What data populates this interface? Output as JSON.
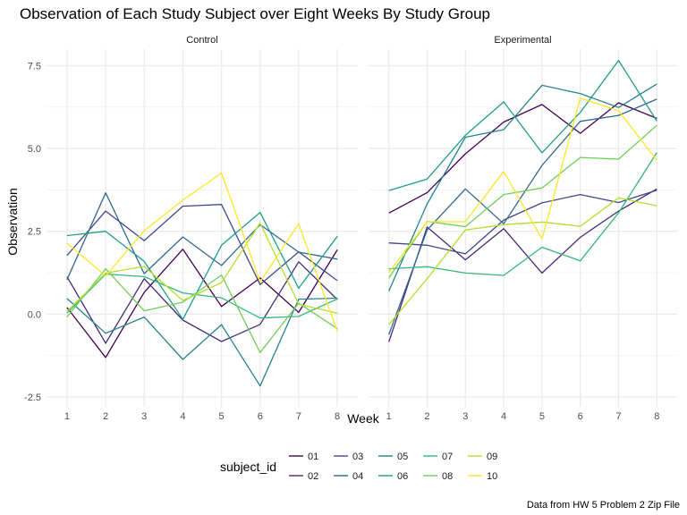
{
  "chart_data": {
    "type": "line",
    "title": "Observation of Each Study Subject over Eight Weeks By Study Group",
    "xlabel": "Week",
    "ylabel": "Observation",
    "caption": "Data from HW 5 Problem 2 Zip File",
    "x": [
      1,
      2,
      3,
      4,
      5,
      6,
      7,
      8
    ],
    "x_ticks": [
      "1",
      "2",
      "3",
      "4",
      "5",
      "6",
      "7",
      "8"
    ],
    "ylim": [
      -2.8,
      8.0
    ],
    "y_ticks": [
      -2.5,
      0.0,
      2.5,
      5.0,
      7.5
    ],
    "y_tick_labels": [
      "-2.5",
      "0.0",
      "2.5",
      "5.0",
      "7.5"
    ],
    "grid": true,
    "legend": {
      "title": "subject_id",
      "placement": "bottom",
      "entries": [
        "01",
        "02",
        "03",
        "04",
        "05",
        "06",
        "07",
        "08",
        "09",
        "10"
      ]
    },
    "colors": {
      "01": "#440154",
      "02": "#482878",
      "03": "#3e4989",
      "04": "#31688e",
      "05": "#26828e",
      "06": "#1f9e89",
      "07": "#35b779",
      "08": "#6ece58",
      "09": "#b5de2b",
      "10": "#fde725"
    },
    "facets": [
      {
        "label": "Control",
        "series": [
          {
            "name": "01",
            "values": [
              0.2,
              -1.31,
              0.66,
              1.96,
              0.23,
              1.09,
              0.05,
              1.94
            ]
          },
          {
            "name": "02",
            "values": [
              1.13,
              -0.88,
              1.07,
              -0.18,
              -0.83,
              -0.31,
              1.58,
              0.44
            ]
          },
          {
            "name": "03",
            "values": [
              1.77,
              3.11,
              2.22,
              3.26,
              3.31,
              0.89,
              1.88,
              1.01
            ]
          },
          {
            "name": "04",
            "values": [
              1.04,
              3.66,
              1.22,
              2.33,
              1.47,
              2.7,
              1.87,
              1.66
            ]
          },
          {
            "name": "05",
            "values": [
              0.47,
              -0.58,
              -0.09,
              -1.37,
              -0.32,
              -2.17,
              0.45,
              0.48
            ]
          },
          {
            "name": "06",
            "values": [
              2.37,
              2.5,
              1.59,
              -0.16,
              2.08,
              3.07,
              0.78,
              2.35
            ]
          },
          {
            "name": "07",
            "values": [
              0.03,
              1.21,
              1.13,
              0.64,
              0.49,
              -0.12,
              -0.07,
              0.46
            ]
          },
          {
            "name": "08",
            "values": [
              -0.09,
              1.37,
              0.1,
              0.36,
              1.18,
              -1.16,
              0.33,
              -0.44
            ]
          },
          {
            "name": "09",
            "values": [
              0.08,
              1.24,
              1.44,
              0.41,
              0.95,
              2.75,
              0.3,
              0.03
            ]
          },
          {
            "name": "10",
            "values": [
              2.14,
              1.15,
              2.52,
              3.44,
              4.26,
              0.97,
              2.73,
              -0.53
            ]
          }
        ]
      },
      {
        "label": "Experimental",
        "series": [
          {
            "name": "01",
            "values": [
              3.05,
              3.67,
              4.84,
              5.8,
              6.33,
              5.46,
              6.38,
              5.91
            ]
          },
          {
            "name": "02",
            "values": [
              -0.84,
              2.63,
              1.64,
              2.58,
              1.24,
              2.32,
              3.11,
              3.78
            ]
          },
          {
            "name": "03",
            "values": [
              2.15,
              2.08,
              1.82,
              2.84,
              3.36,
              3.61,
              3.37,
              3.74
            ]
          },
          {
            "name": "04",
            "values": [
              -0.62,
              2.54,
              3.78,
              2.73,
              4.49,
              5.82,
              6.0,
              6.49
            ]
          },
          {
            "name": "05",
            "values": [
              0.7,
              3.33,
              5.34,
              5.57,
              6.91,
              6.66,
              6.24,
              6.95
            ]
          },
          {
            "name": "06",
            "values": [
              3.73,
              4.08,
              5.4,
              6.41,
              4.87,
              6.09,
              7.66,
              5.83
            ]
          },
          {
            "name": "07",
            "values": [
              1.37,
              1.43,
              1.24,
              1.17,
              2.02,
              1.61,
              3.06,
              4.88
            ]
          },
          {
            "name": "08",
            "values": [
              1.09,
              2.8,
              2.64,
              3.61,
              3.81,
              4.73,
              4.68,
              5.7
            ]
          },
          {
            "name": "09",
            "values": [
              -0.32,
              1.07,
              2.54,
              2.7,
              2.78,
              2.65,
              3.51,
              3.27
            ]
          },
          {
            "name": "10",
            "values": [
              1.26,
              2.79,
              2.79,
              4.31,
              2.27,
              6.52,
              6.14,
              4.64
            ]
          }
        ]
      }
    ]
  }
}
